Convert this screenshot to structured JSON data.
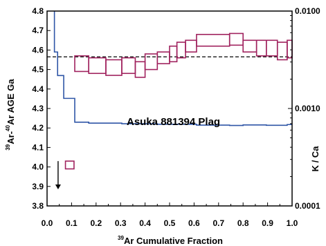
{
  "chart_data": {
    "type": "step",
    "annotation": "Asuka 881394  Plag",
    "xlabel": {
      "sup": "39",
      "text": "Ar Cumulative Fraction"
    },
    "ylabel_left": {
      "sup1": "39",
      "mid1": "Ar-",
      "sup2": "40",
      "mid2": "Ar AGE  Ga"
    },
    "ylabel_right": "K / Ca",
    "xlim": [
      0.0,
      1.0
    ],
    "ylim_left": [
      3.8,
      4.8
    ],
    "ylim_right_log": [
      0.0001,
      0.01
    ],
    "x_ticks": [
      "0.0",
      "0.1",
      "0.2",
      "0.3",
      "0.4",
      "0.5",
      "0.6",
      "0.7",
      "0.8",
      "0.9",
      "1.0"
    ],
    "y_left_ticks": [
      "3.8",
      "3.9",
      "4.0",
      "4.1",
      "4.2",
      "4.3",
      "4.4",
      "4.5",
      "4.6",
      "4.7",
      "4.8"
    ],
    "y_right_ticks": [
      "0.0001",
      "0.0010",
      "0.0100"
    ],
    "reference_age": 4.565,
    "age_steps": [
      {
        "x0": 0.113,
        "x1": 0.17,
        "age": 4.53,
        "err": 0.04
      },
      {
        "x0": 0.17,
        "x1": 0.24,
        "age": 4.52,
        "err": 0.04
      },
      {
        "x0": 0.24,
        "x1": 0.305,
        "age": 4.51,
        "err": 0.04
      },
      {
        "x0": 0.305,
        "x1": 0.36,
        "age": 4.52,
        "err": 0.04
      },
      {
        "x0": 0.36,
        "x1": 0.4,
        "age": 4.5,
        "err": 0.04
      },
      {
        "x0": 0.4,
        "x1": 0.45,
        "age": 4.54,
        "err": 0.04
      },
      {
        "x0": 0.45,
        "x1": 0.5,
        "age": 4.56,
        "err": 0.03
      },
      {
        "x0": 0.5,
        "x1": 0.53,
        "age": 4.58,
        "err": 0.04
      },
      {
        "x0": 0.53,
        "x1": 0.565,
        "age": 4.6,
        "err": 0.04
      },
      {
        "x0": 0.565,
        "x1": 0.61,
        "age": 4.62,
        "err": 0.03
      },
      {
        "x0": 0.61,
        "x1": 0.745,
        "age": 4.65,
        "err": 0.03
      },
      {
        "x0": 0.745,
        "x1": 0.8,
        "age": 4.655,
        "err": 0.03
      },
      {
        "x0": 0.8,
        "x1": 0.855,
        "age": 4.62,
        "err": 0.03
      },
      {
        "x0": 0.855,
        "x1": 0.895,
        "age": 4.61,
        "err": 0.04
      },
      {
        "x0": 0.895,
        "x1": 0.94,
        "age": 4.61,
        "err": 0.04
      },
      {
        "x0": 0.94,
        "x1": 0.98,
        "age": 4.595,
        "err": 0.045
      },
      {
        "x0": 0.98,
        "x1": 1.0,
        "age": 4.605,
        "err": 0.045
      }
    ],
    "low_age_step": {
      "x0": 0.075,
      "x1": 0.11,
      "age": 4.01,
      "err": 0.02
    },
    "low_step_arrow": "down",
    "kca_steps": [
      {
        "x0": 0.0,
        "x1": 0.03,
        "kca": 0.0117
      },
      {
        "x0": 0.03,
        "x1": 0.043,
        "kca": 0.0038
      },
      {
        "x0": 0.043,
        "x1": 0.068,
        "kca": 0.00218
      },
      {
        "x0": 0.068,
        "x1": 0.113,
        "kca": 0.00127
      },
      {
        "x0": 0.113,
        "x1": 0.17,
        "kca": 0.000723
      },
      {
        "x0": 0.17,
        "x1": 0.305,
        "kca": 0.000708
      },
      {
        "x0": 0.305,
        "x1": 0.45,
        "kca": 0.000698
      },
      {
        "x0": 0.45,
        "x1": 0.61,
        "kca": 0.000689
      },
      {
        "x0": 0.61,
        "x1": 0.745,
        "kca": 0.000675
      },
      {
        "x0": 0.745,
        "x1": 0.8,
        "kca": 0.00067
      },
      {
        "x0": 0.8,
        "x1": 0.895,
        "kca": 0.000678
      },
      {
        "x0": 0.895,
        "x1": 0.98,
        "kca": 0.000672
      },
      {
        "x0": 0.98,
        "x1": 1.0,
        "kca": 0.000684
      }
    ],
    "colors": {
      "age_boxes": "#a0225e",
      "kca_line": "#2e55a6",
      "reference_line": "#000000",
      "axes": "#000000"
    }
  }
}
